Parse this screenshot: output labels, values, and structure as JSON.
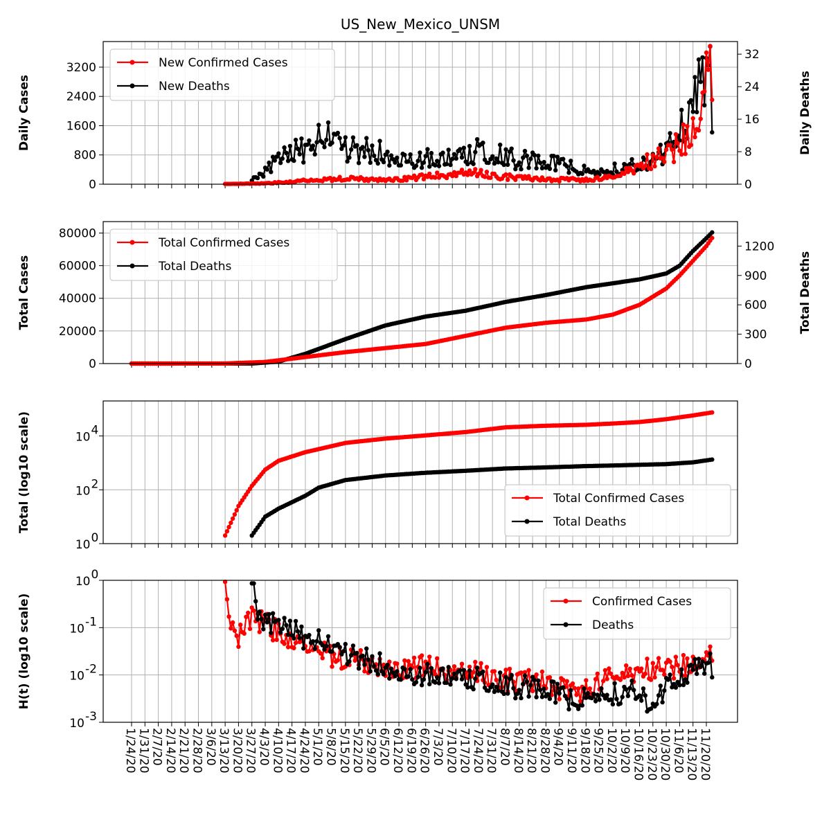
{
  "chart_data": [
    {
      "type": "line",
      "title": "US_New_Mexico_UNSM",
      "ylabel": "Daily Cases",
      "ylabel_right": "Daily Deaths",
      "grid": true,
      "legend_placement": "upper-left",
      "x_tick_labels": [
        "1/24/20",
        "1/31/20",
        "2/7/20",
        "2/14/20",
        "2/21/20",
        "2/28/20",
        "3/6/20",
        "3/13/20",
        "3/20/20",
        "3/27/20",
        "4/3/20",
        "4/10/20",
        "4/17/20",
        "4/24/20",
        "5/1/20",
        "5/8/20",
        "5/15/20",
        "5/22/20",
        "5/29/20",
        "6/5/20",
        "6/12/20",
        "6/19/20",
        "6/26/20",
        "7/3/20",
        "7/10/20",
        "7/17/20",
        "7/24/20",
        "7/31/20",
        "8/7/20",
        "8/14/20",
        "8/21/20",
        "8/28/20",
        "9/4/20",
        "9/11/20",
        "9/18/20",
        "9/25/20",
        "10/2/20",
        "10/9/20",
        "10/16/20",
        "10/23/20",
        "10/30/20",
        "11/6/20",
        "11/13/20",
        "11/20/20"
      ],
      "ylim": [
        0,
        3900
      ],
      "yticks": [
        "0",
        "800",
        "1600",
        "2400",
        "3200"
      ],
      "ylim_right": [
        0,
        35.1
      ],
      "yticks_right": [
        "0",
        "8",
        "16",
        "24",
        "32"
      ],
      "series": [
        {
          "name": "New Confirmed Cases",
          "axis": "left",
          "color": "#ff0000",
          "x": [
            "3/13/20",
            "4/3/20",
            "4/24/20",
            "5/15/20",
            "6/5/20",
            "6/26/20",
            "7/17/20",
            "8/7/20",
            "8/28/20",
            "9/18/20",
            "10/2/20",
            "10/16/20",
            "10/30/20",
            "11/6/20",
            "11/13/20",
            "11/16/20",
            "11/20/20",
            "11/23/20"
          ],
          "values": [
            5,
            20,
            100,
            150,
            120,
            200,
            330,
            200,
            130,
            120,
            180,
            500,
            800,
            1100,
            1400,
            2000,
            3600,
            2300
          ]
        },
        {
          "name": "New Deaths",
          "axis": "right",
          "color": "#000000",
          "x": [
            "3/27/20",
            "4/10/20",
            "4/24/20",
            "5/8/20",
            "5/15/20",
            "5/29/20",
            "6/12/20",
            "7/3/20",
            "7/24/20",
            "8/14/20",
            "9/4/20",
            "9/25/20",
            "10/16/20",
            "10/30/20",
            "11/6/20",
            "11/13/20",
            "11/20/20",
            "11/23/20"
          ],
          "values": [
            1,
            6,
            9,
            12,
            9,
            8,
            7,
            6,
            8,
            6,
            5,
            3,
            5,
            8,
            14,
            17,
            34,
            20
          ]
        }
      ]
    },
    {
      "type": "line",
      "ylabel": "Total Cases",
      "ylabel_right": "Total Deaths",
      "grid": true,
      "legend_placement": "upper-left",
      "ylim": [
        0,
        87000
      ],
      "yticks": [
        "0",
        "20000",
        "40000",
        "60000",
        "80000"
      ],
      "ylim_right": [
        0,
        1450
      ],
      "yticks_right": [
        "0",
        "300",
        "600",
        "900",
        "1200"
      ],
      "series": [
        {
          "name": "Total Confirmed Cases",
          "axis": "left",
          "color": "#ff0000",
          "x": [
            "1/24/20",
            "3/13/20",
            "4/3/20",
            "4/24/20",
            "5/15/20",
            "6/5/20",
            "6/26/20",
            "7/17/20",
            "8/7/20",
            "8/28/20",
            "9/18/20",
            "10/2/20",
            "10/16/20",
            "10/30/20",
            "11/6/20",
            "11/13/20",
            "11/20/20",
            "11/23/20"
          ],
          "values": [
            0,
            50,
            1000,
            4000,
            7000,
            9500,
            12000,
            17000,
            22000,
            25000,
            27000,
            30000,
            36000,
            46000,
            54000,
            63000,
            72000,
            77000
          ]
        },
        {
          "name": "Total Deaths",
          "axis": "right",
          "color": "#000000",
          "x": [
            "1/24/20",
            "3/27/20",
            "4/10/20",
            "4/24/20",
            "5/15/20",
            "6/5/20",
            "6/26/20",
            "7/17/20",
            "8/7/20",
            "8/28/20",
            "9/18/20",
            "10/2/20",
            "10/16/20",
            "10/30/20",
            "11/6/20",
            "11/13/20",
            "11/20/20",
            "11/23/20"
          ],
          "values": [
            0,
            1,
            20,
            100,
            250,
            390,
            480,
            540,
            630,
            700,
            780,
            820,
            860,
            920,
            1000,
            1150,
            1280,
            1340
          ]
        }
      ]
    },
    {
      "type": "line",
      "ylabel": "Total (log10 scale)",
      "yscale": "log",
      "grid": true,
      "legend_placement": "lower-right",
      "ylim": [
        1,
        200000
      ],
      "yticks": [
        "10^0",
        "10^2",
        "10^4"
      ],
      "series": [
        {
          "name": "Total Confirmed Cases",
          "color": "#ff0000",
          "x": [
            "3/13/20",
            "3/20/20",
            "3/27/20",
            "4/3/20",
            "4/10/20",
            "4/24/20",
            "5/15/20",
            "6/5/20",
            "6/26/20",
            "7/17/20",
            "8/7/20",
            "8/28/20",
            "9/18/20",
            "10/2/20",
            "10/16/20",
            "10/30/20",
            "11/13/20",
            "11/23/20"
          ],
          "values": [
            2,
            25,
            140,
            560,
            1200,
            2500,
            5500,
            8000,
            10500,
            14000,
            21000,
            24000,
            26000,
            29000,
            33000,
            42000,
            58000,
            75000
          ]
        },
        {
          "name": "Total Deaths",
          "color": "#000000",
          "x": [
            "3/27/20",
            "4/3/20",
            "4/10/20",
            "4/24/20",
            "5/1/20",
            "5/15/20",
            "6/5/20",
            "6/26/20",
            "7/17/20",
            "8/7/20",
            "8/28/20",
            "9/18/20",
            "10/2/20",
            "10/16/20",
            "10/30/20",
            "11/13/20",
            "11/23/20"
          ],
          "values": [
            2,
            10,
            20,
            60,
            120,
            230,
            340,
            430,
            510,
            620,
            680,
            760,
            800,
            850,
            900,
            1050,
            1330
          ]
        }
      ]
    },
    {
      "type": "line",
      "ylabel": "H(t) (log10 scale)",
      "yscale": "log",
      "grid": true,
      "legend_placement": "upper-right",
      "ylim": [
        0.001,
        1
      ],
      "yticks": [
        "10^-3",
        "10^-2",
        "10^-1",
        "10^0"
      ],
      "series": [
        {
          "name": "Confirmed Cases",
          "color": "#ff0000",
          "x": [
            "3/13/20",
            "3/16/20",
            "3/20/20",
            "3/27/20",
            "4/3/20",
            "4/10/20",
            "4/17/20",
            "4/24/20",
            "5/1/20",
            "5/8/20",
            "5/15/20",
            "5/22/20",
            "6/5/20",
            "6/26/20",
            "7/17/20",
            "8/7/20",
            "8/28/20",
            "9/11/20",
            "9/18/20",
            "10/2/20",
            "10/16/20",
            "10/30/20",
            "11/13/20",
            "11/20/20",
            "11/23/20"
          ],
          "values": [
            0.55,
            0.08,
            0.06,
            0.15,
            0.12,
            0.08,
            0.06,
            0.04,
            0.04,
            0.025,
            0.02,
            0.02,
            0.014,
            0.015,
            0.012,
            0.008,
            0.007,
            0.004,
            0.005,
            0.009,
            0.012,
            0.014,
            0.016,
            0.03,
            0.02
          ]
        },
        {
          "name": "Deaths",
          "color": "#000000",
          "x": [
            "3/27/20",
            "3/30/20",
            "4/3/20",
            "4/10/20",
            "4/17/20",
            "4/24/20",
            "5/1/20",
            "5/15/20",
            "6/5/20",
            "6/26/20",
            "7/17/20",
            "8/7/20",
            "8/28/20",
            "9/11/20",
            "9/18/20",
            "10/2/20",
            "10/16/20",
            "10/23/20",
            "10/30/20",
            "11/13/20",
            "11/20/20",
            "11/23/20"
          ],
          "values": [
            1,
            0.22,
            0.15,
            0.1,
            0.09,
            0.06,
            0.05,
            0.03,
            0.015,
            0.01,
            0.009,
            0.006,
            0.005,
            0.003,
            0.004,
            0.004,
            0.005,
            0.002,
            0.006,
            0.012,
            0.02,
            0.015
          ]
        }
      ]
    }
  ]
}
